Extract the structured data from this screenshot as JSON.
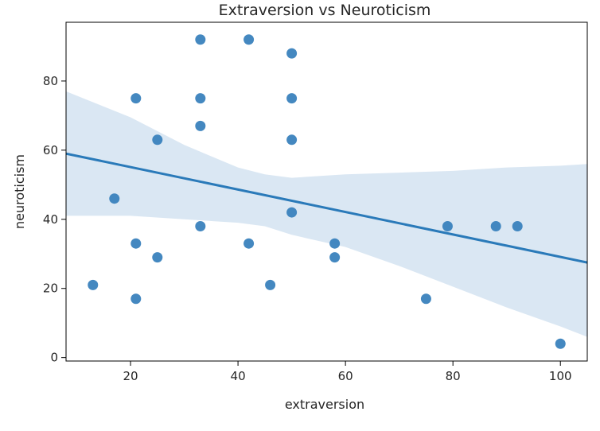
{
  "chart_data": {
    "type": "scatter",
    "title": "Extraversion vs Neuroticism",
    "xlabel": "extraversion",
    "ylabel": "neuroticism",
    "xlim": [
      8,
      105
    ],
    "ylim": [
      -1,
      97
    ],
    "xticks": [
      20,
      40,
      60,
      80,
      100
    ],
    "yticks": [
      0,
      20,
      40,
      60,
      80
    ],
    "grid": false,
    "colors": {
      "points": "#3a82bd",
      "line": "#2a7ab9",
      "band": "#d3e3f1",
      "axis": "#000000"
    },
    "points": [
      {
        "x": 13,
        "y": 21
      },
      {
        "x": 17,
        "y": 46
      },
      {
        "x": 21,
        "y": 75
      },
      {
        "x": 21,
        "y": 33
      },
      {
        "x": 21,
        "y": 17
      },
      {
        "x": 25,
        "y": 63
      },
      {
        "x": 25,
        "y": 29
      },
      {
        "x": 33,
        "y": 92
      },
      {
        "x": 33,
        "y": 75
      },
      {
        "x": 33,
        "y": 67
      },
      {
        "x": 33,
        "y": 38
      },
      {
        "x": 42,
        "y": 92
      },
      {
        "x": 42,
        "y": 33
      },
      {
        "x": 46,
        "y": 21
      },
      {
        "x": 50,
        "y": 88
      },
      {
        "x": 50,
        "y": 75
      },
      {
        "x": 50,
        "y": 63
      },
      {
        "x": 50,
        "y": 42
      },
      {
        "x": 58,
        "y": 33
      },
      {
        "x": 58,
        "y": 29
      },
      {
        "x": 75,
        "y": 17
      },
      {
        "x": 79,
        "y": 38
      },
      {
        "x": 88,
        "y": 38
      },
      {
        "x": 92,
        "y": 38
      },
      {
        "x": 100,
        "y": 4
      }
    ],
    "regression": {
      "x": [
        8,
        105
      ],
      "y": [
        59,
        27.5
      ]
    },
    "confidence_band": {
      "x": [
        8,
        20,
        30,
        40,
        45,
        50,
        60,
        70,
        80,
        90,
        100,
        105
      ],
      "upper": [
        77,
        69.5,
        61.5,
        55,
        53,
        52,
        53,
        53.5,
        54,
        55,
        55.5,
        56
      ],
      "lower": [
        41,
        41,
        40,
        39,
        38,
        35.5,
        32,
        26.5,
        20.5,
        14.5,
        9,
        6
      ]
    }
  }
}
